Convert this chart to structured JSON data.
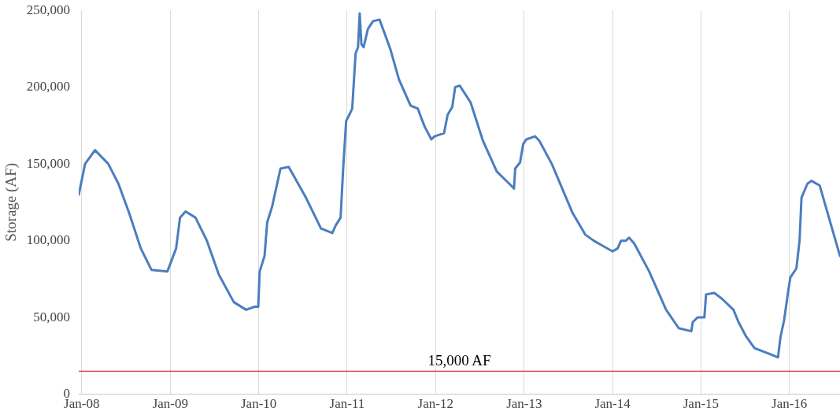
{
  "chart_data": {
    "type": "line",
    "ylabel": "Storage (AF)",
    "xlim": [
      "2007-12-20",
      "2016-07-28"
    ],
    "ylim": [
      0,
      250000
    ],
    "yticks": [
      {
        "value": 0,
        "label": "0"
      },
      {
        "value": 50000,
        "label": "50,000"
      },
      {
        "value": 100000,
        "label": "100,000"
      },
      {
        "value": 150000,
        "label": "150,000"
      },
      {
        "value": 200000,
        "label": "200,000"
      },
      {
        "value": 250000,
        "label": "250,000"
      }
    ],
    "xticks": [
      {
        "value": "2008-01",
        "label": "Jan-08"
      },
      {
        "value": "2009-01",
        "label": "Jan-09"
      },
      {
        "value": "2010-01",
        "label": "Jan-10"
      },
      {
        "value": "2011-01",
        "label": "Jan-11"
      },
      {
        "value": "2012-01",
        "label": "Jan-12"
      },
      {
        "value": "2013-01",
        "label": "Jan-13"
      },
      {
        "value": "2014-01",
        "label": "Jan-14"
      },
      {
        "value": "2015-01",
        "label": "Jan-15"
      },
      {
        "value": "2016-01",
        "label": "Jan-16"
      }
    ],
    "grid": "x",
    "legend": false,
    "marker": "none",
    "line_style": "solid",
    "ref_lines": [
      {
        "axis": "y",
        "value": 15000,
        "label": "15,000 AF",
        "color": "#e03030"
      }
    ],
    "series": [
      {
        "color": "#4a7ebf",
        "x": [
          "2007-12-20",
          "2008-01-15",
          "2008-02-25",
          "2008-04-20",
          "2008-06-01",
          "2008-07-15",
          "2008-09-01",
          "2008-10-15",
          "2008-12-20",
          "2009-01-25",
          "2009-02-10",
          "2009-03-05",
          "2009-04-15",
          "2009-06-01",
          "2009-07-20",
          "2009-09-20",
          "2009-11-10",
          "2009-12-15",
          "2009-12-30",
          "2010-01-05",
          "2010-01-25",
          "2010-02-05",
          "2010-02-25",
          "2010-04-01",
          "2010-05-05",
          "2010-07-15",
          "2010-09-15",
          "2010-11-01",
          "2010-11-15",
          "2010-12-05",
          "2010-12-15",
          "2010-12-28",
          "2011-01-10",
          "2011-01-22",
          "2011-02-05",
          "2011-02-15",
          "2011-02-22",
          "2011-03-01",
          "2011-03-10",
          "2011-03-28",
          "2011-04-18",
          "2011-05-15",
          "2011-06-28",
          "2011-08-03",
          "2011-09-20",
          "2011-10-20",
          "2011-11-03",
          "2011-11-18",
          "2011-12-15",
          "2011-12-28",
          "2012-02-05",
          "2012-02-20",
          "2012-03-10",
          "2012-03-22",
          "2012-04-10",
          "2012-05-25",
          "2012-07-15",
          "2012-09-10",
          "2012-11-01",
          "2012-11-20",
          "2012-11-25",
          "2012-12-15",
          "2012-12-28",
          "2013-01-10",
          "2013-02-15",
          "2013-03-05",
          "2013-04-25",
          "2013-07-20",
          "2013-09-10",
          "2013-10-15",
          "2014-01-01",
          "2014-01-22",
          "2014-02-05",
          "2014-02-25",
          "2014-03-10",
          "2014-04-01",
          "2014-06-01",
          "2014-08-10",
          "2014-10-01",
          "2014-11-22",
          "2014-11-28",
          "2014-12-18",
          "2015-01-15",
          "2015-01-22",
          "2015-02-25",
          "2015-03-30",
          "2015-05-15",
          "2015-06-05",
          "2015-07-05",
          "2015-08-10",
          "2015-10-15",
          "2015-11-15",
          "2015-11-25",
          "2015-12-10",
          "2015-12-28",
          "2016-01-05",
          "2016-01-30",
          "2016-02-12",
          "2016-02-20",
          "2016-03-15",
          "2016-04-01",
          "2016-05-05",
          "2016-07-28"
        ],
        "values": [
          130000,
          150000,
          159000,
          150000,
          137000,
          118000,
          95000,
          81000,
          80000,
          95000,
          115000,
          119000,
          115000,
          100000,
          78000,
          60000,
          55000,
          57000,
          57000,
          80000,
          90000,
          112000,
          122000,
          147000,
          148000,
          128000,
          108000,
          105000,
          110000,
          115000,
          145000,
          178000,
          182000,
          186000,
          222000,
          226000,
          248000,
          228000,
          226000,
          238000,
          243000,
          244000,
          225000,
          205000,
          188000,
          186000,
          180000,
          174000,
          166000,
          168000,
          170000,
          182000,
          187000,
          200000,
          201000,
          190000,
          165000,
          145000,
          137000,
          134000,
          147000,
          151000,
          163000,
          166000,
          168000,
          165000,
          150000,
          118000,
          104000,
          100000,
          93000,
          95000,
          100000,
          100000,
          102000,
          98000,
          80000,
          55000,
          43000,
          41000,
          47000,
          50000,
          50000,
          65000,
          66000,
          62000,
          55000,
          47000,
          38000,
          30000,
          26000,
          24000,
          37000,
          48000,
          68000,
          76000,
          82000,
          100000,
          128000,
          137000,
          139000,
          136000,
          90000
        ]
      }
    ]
  }
}
